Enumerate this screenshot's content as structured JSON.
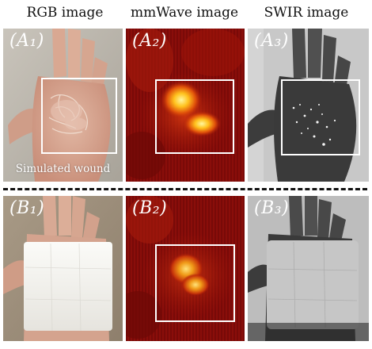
{
  "columns": {
    "rgb": "RGB image",
    "mmwave": "mmWave image",
    "swir": "SWIR image"
  },
  "panels": {
    "a1": {
      "label": "(A₁)",
      "annotation": "Simulated wound"
    },
    "a2": {
      "label": "(A₂)"
    },
    "a3": {
      "label": "(A₃)"
    },
    "b1": {
      "label": "(B₁)"
    },
    "b2": {
      "label": "(B₂)"
    },
    "b3": {
      "label": "(B₃)"
    }
  }
}
